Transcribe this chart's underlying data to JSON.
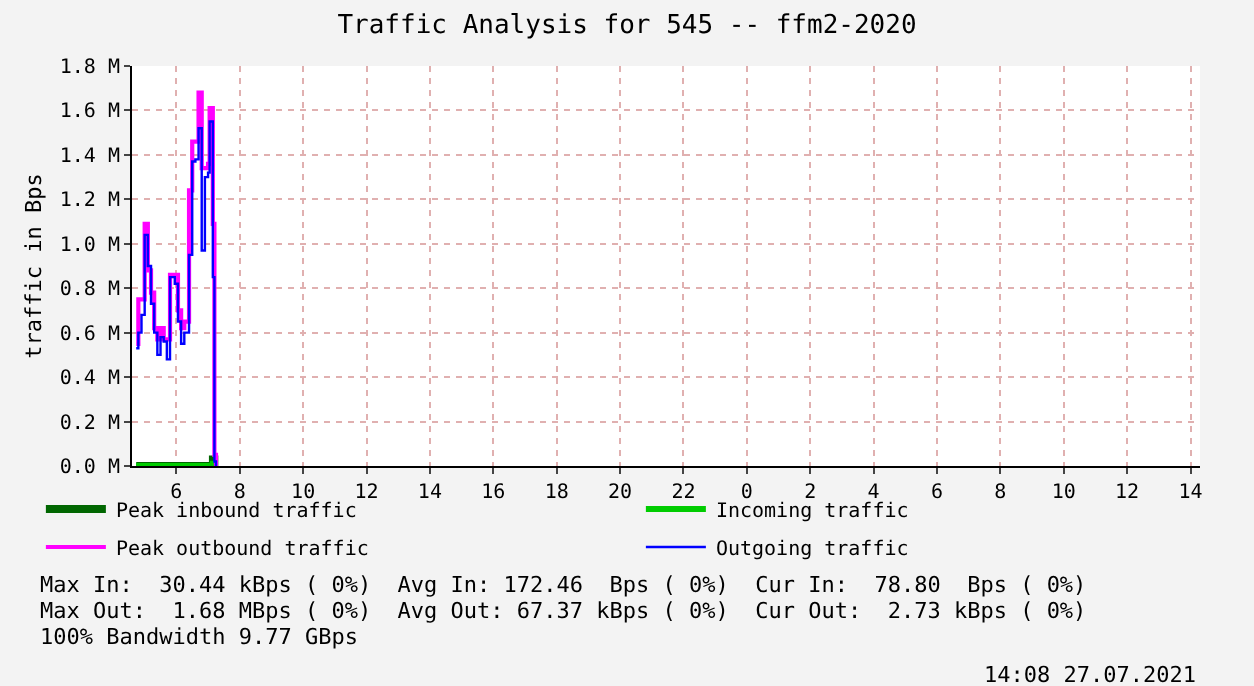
{
  "chart_data": {
    "type": "step",
    "title": "Traffic Analysis for 545 -- ffm2-2020",
    "ylabel": "traffic in Bps",
    "x": [
      "2021-07-26T04:44",
      "2021-07-26T04:48",
      "2021-07-26T04:54",
      "2021-07-26T05:00",
      "2021-07-26T05:06",
      "2021-07-26T05:12",
      "2021-07-26T05:18",
      "2021-07-26T05:24",
      "2021-07-26T05:30",
      "2021-07-26T05:36",
      "2021-07-26T05:42",
      "2021-07-26T05:48",
      "2021-07-26T05:57",
      "2021-07-26T06:03",
      "2021-07-26T06:09",
      "2021-07-26T06:15",
      "2021-07-26T06:24",
      "2021-07-26T06:30",
      "2021-07-26T06:36",
      "2021-07-26T06:42",
      "2021-07-26T06:48",
      "2021-07-26T06:54",
      "2021-07-26T07:00",
      "2021-07-26T07:03",
      "2021-07-26T07:09",
      "2021-07-26T07:12",
      "2021-07-26T07:15"
    ],
    "series": [
      {
        "name": "Peak inbound traffic",
        "color": "#006600",
        "values": [
          0,
          0,
          0,
          0,
          0,
          0,
          0,
          0,
          0,
          0,
          0,
          0,
          0,
          0,
          0,
          0,
          0,
          0,
          0,
          0,
          0,
          0,
          0,
          0,
          0.03,
          0,
          0
        ]
      },
      {
        "name": "Incoming traffic",
        "color": "#00cc00",
        "values": [
          0,
          0,
          0,
          0,
          0,
          0,
          0,
          0,
          0,
          0,
          0,
          0,
          0,
          0,
          0,
          0,
          0,
          0,
          0,
          0,
          0,
          0,
          0,
          0,
          0.01,
          0,
          0
        ]
      },
      {
        "name": "Peak outbound traffic",
        "color": "#ff00ff",
        "values": [
          0.55,
          0.75,
          0.75,
          1.09,
          0.88,
          0.78,
          0.62,
          0.57,
          0.62,
          0.57,
          0.57,
          0.86,
          0.86,
          0.7,
          0.62,
          0.65,
          1.24,
          1.46,
          1.46,
          1.68,
          1.34,
          1.34,
          1.36,
          1.61,
          1.09,
          0.05,
          0
        ]
      },
      {
        "name": "Outgoing traffic",
        "color": "#0000ff",
        "values": [
          0.53,
          0.6,
          0.68,
          1.04,
          0.9,
          0.73,
          0.6,
          0.5,
          0.58,
          0.56,
          0.48,
          0.85,
          0.82,
          0.65,
          0.55,
          0.6,
          0.95,
          1.37,
          1.38,
          1.52,
          0.97,
          1.3,
          1.32,
          1.55,
          0.85,
          0.02,
          0
        ]
      }
    ],
    "xlim": [
      "2021-07-26T04:36",
      "2021-07-27T14:18"
    ],
    "xticks": [
      {
        "value": "2021-07-26T06:00",
        "label": "6"
      },
      {
        "value": "2021-07-26T08:00",
        "label": "8"
      },
      {
        "value": "2021-07-26T10:00",
        "label": "10"
      },
      {
        "value": "2021-07-26T12:00",
        "label": "12"
      },
      {
        "value": "2021-07-26T14:00",
        "label": "14"
      },
      {
        "value": "2021-07-26T16:00",
        "label": "16"
      },
      {
        "value": "2021-07-26T18:00",
        "label": "18"
      },
      {
        "value": "2021-07-26T20:00",
        "label": "20"
      },
      {
        "value": "2021-07-26T22:00",
        "label": "22"
      },
      {
        "value": "2021-07-27T00:00",
        "label": "0"
      },
      {
        "value": "2021-07-27T02:00",
        "label": "2"
      },
      {
        "value": "2021-07-27T04:00",
        "label": "4"
      },
      {
        "value": "2021-07-27T06:00",
        "label": "6"
      },
      {
        "value": "2021-07-27T08:00",
        "label": "8"
      },
      {
        "value": "2021-07-27T10:00",
        "label": "10"
      },
      {
        "value": "2021-07-27T12:00",
        "label": "12"
      },
      {
        "value": "2021-07-27T14:00",
        "label": "14"
      }
    ],
    "ylim": [
      0,
      1.8
    ],
    "yticks": [
      {
        "value": 0,
        "label": "0.0 M"
      },
      {
        "value": 0.2,
        "label": "0.2 M"
      },
      {
        "value": 0.4,
        "label": "0.4 M"
      },
      {
        "value": 0.6,
        "label": "0.6 M"
      },
      {
        "value": 0.8,
        "label": "0.8 M"
      },
      {
        "value": 1.0,
        "label": "1.0 M"
      },
      {
        "value": 1.2,
        "label": "1.2 M"
      },
      {
        "value": 1.4,
        "label": "1.4 M"
      },
      {
        "value": 1.6,
        "label": "1.6 M"
      },
      {
        "value": 1.8,
        "label": "1.8 M"
      }
    ],
    "grid": true,
    "legend": "bottom",
    "annotations": [
      "Max In:  30.44 kBps ( 0%)  Avg In: 172.46  Bps ( 0%)  Cur In:  78.80  Bps ( 0%)",
      "Max Out:  1.68 MBps ( 0%)  Avg Out: 67.37 kBps ( 0%)  Cur Out:  2.73 kBps ( 0%)",
      "100% Bandwidth 9.77 GBps",
      "14:08 27.07.2021"
    ]
  }
}
